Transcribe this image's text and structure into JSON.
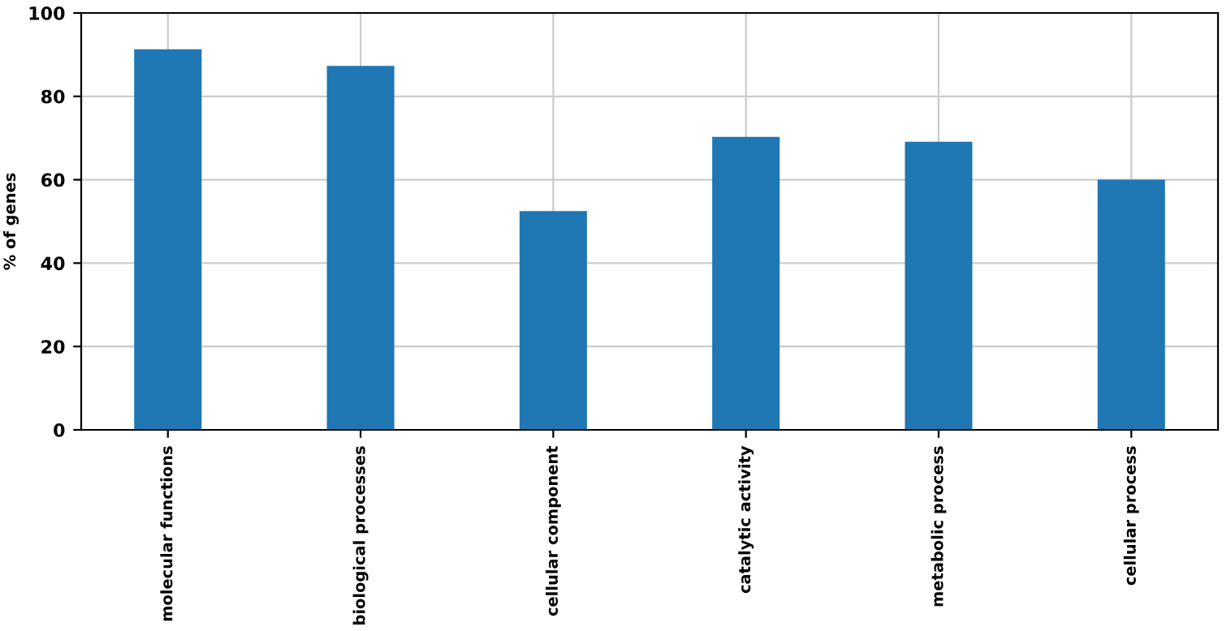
{
  "chart_data": {
    "type": "bar",
    "ylabel": "% of genes",
    "categories": [
      "molecular functions",
      "biological processes",
      "cellular component",
      "catalytic activity",
      "metabolic process",
      "cellular process"
    ],
    "values": [
      91.3,
      87.3,
      52.5,
      70.3,
      69.1,
      60
    ],
    "color": "#1f77b4",
    "ylim": [
      0,
      100
    ],
    "yticks": [
      0,
      20,
      40,
      60,
      80,
      100
    ],
    "grid": true
  }
}
